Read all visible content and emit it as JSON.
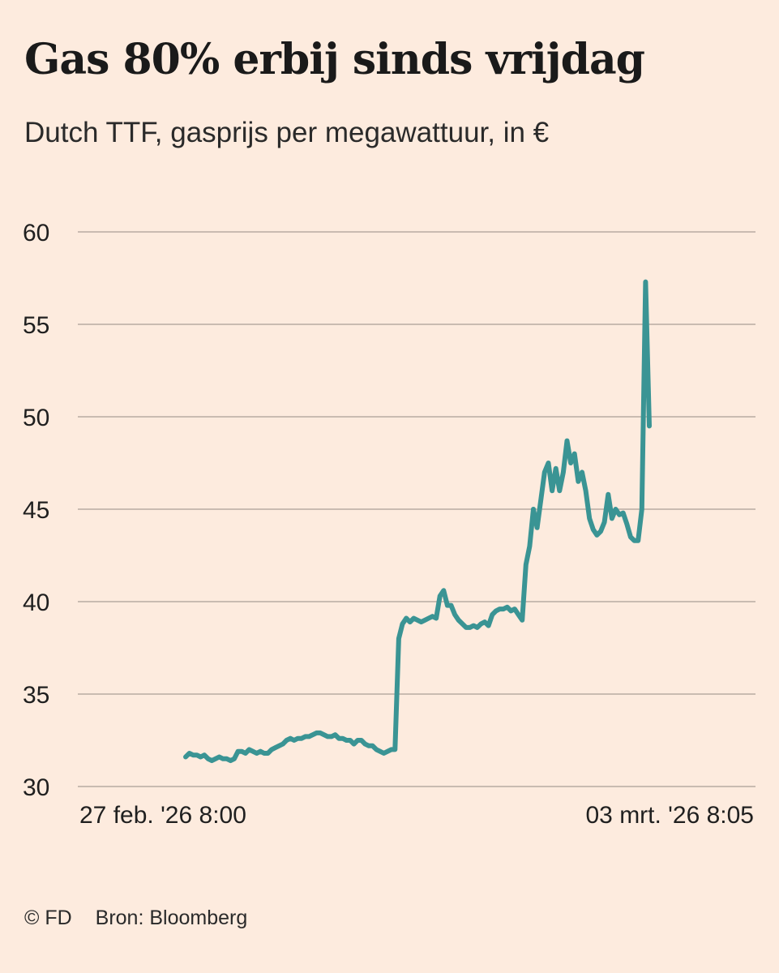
{
  "header": {
    "title": "Gas 80% erbij sinds vrijdag",
    "subtitle": "Dutch TTF, gasprijs per megawattuur, in €"
  },
  "footer": {
    "copyright": "© FD",
    "source": "Bron: Bloomberg"
  },
  "colors": {
    "background": "#fdebde",
    "line": "#3a9494",
    "grid": "#c9bbb1",
    "text": "#1f1f1f"
  },
  "chart_data": {
    "type": "line",
    "title": "Gas 80% erbij sinds vrijdag",
    "subtitle": "Dutch TTF, gasprijs per megawattuur, in €",
    "xlabel": "",
    "ylabel": "",
    "ylim": [
      30,
      60
    ],
    "yticks": [
      30,
      35,
      40,
      45,
      50,
      55,
      60
    ],
    "x_tick_labels": [
      "27 feb. '26 8:00",
      "03 mrt. '26 8:05"
    ],
    "grid": "horizontal",
    "legend": "none",
    "series": [
      {
        "values": [
          31.6,
          31.8,
          31.7,
          31.7,
          31.6,
          31.7,
          31.5,
          31.4,
          31.5,
          31.6,
          31.5,
          31.5,
          31.4,
          31.5,
          31.9,
          31.9,
          31.8,
          32.0,
          31.9,
          31.8,
          31.9,
          31.8,
          31.8,
          32.0,
          32.1,
          32.2,
          32.3,
          32.5,
          32.6,
          32.5,
          32.6,
          32.6,
          32.7,
          32.7,
          32.8,
          32.9,
          32.9,
          32.8,
          32.7,
          32.7,
          32.8,
          32.6,
          32.6,
          32.5,
          32.5,
          32.3,
          32.5,
          32.5,
          32.3,
          32.2,
          32.2,
          32.0,
          31.9,
          31.8,
          31.9,
          32.0,
          32.0,
          38.0,
          38.8,
          39.1,
          38.9,
          39.1,
          39.0,
          38.9,
          39.0,
          39.1,
          39.2,
          39.1,
          40.3,
          40.6,
          39.8,
          39.8,
          39.3,
          39.0,
          38.8,
          38.6,
          38.6,
          38.7,
          38.6,
          38.8,
          38.9,
          38.7,
          39.3,
          39.5,
          39.6,
          39.6,
          39.7,
          39.5,
          39.6,
          39.3,
          39.0,
          42.0,
          43.0,
          45.0,
          44.0,
          45.5,
          47.0,
          47.5,
          46.0,
          47.2,
          46.0,
          47.0,
          48.7,
          47.5,
          48.0,
          46.5,
          47.0,
          46.0,
          44.5,
          43.9,
          43.6,
          43.8,
          44.3,
          45.8,
          44.5,
          45.0,
          44.7,
          44.8,
          44.2,
          43.5,
          43.3,
          43.3,
          45.0,
          57.3,
          49.5
        ]
      }
    ]
  }
}
